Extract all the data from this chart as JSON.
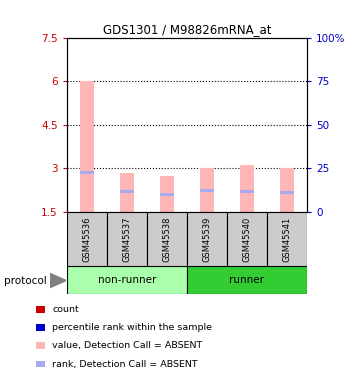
{
  "title": "GDS1301 / M98826mRNA_at",
  "samples": [
    "GSM45536",
    "GSM45537",
    "GSM45538",
    "GSM45539",
    "GSM45540",
    "GSM45541"
  ],
  "bar_values": [
    6.02,
    2.85,
    2.75,
    3.02,
    3.12,
    3.02
  ],
  "rank_values": [
    2.85,
    2.2,
    2.1,
    2.22,
    2.2,
    2.18
  ],
  "bar_bottom": 1.5,
  "ylim_left": [
    1.5,
    7.5
  ],
  "ylim_right": [
    0,
    100
  ],
  "yticks_left": [
    1.5,
    3.0,
    4.5,
    6.0,
    7.5
  ],
  "yticks_right": [
    0,
    25,
    50,
    75,
    100
  ],
  "ytick_labels_left": [
    "1.5",
    "3",
    "4.5",
    "6",
    "7.5"
  ],
  "ytick_labels_right": [
    "0",
    "25",
    "50",
    "75",
    "100%"
  ],
  "bar_color": "#FFB6B6",
  "rank_color": "#AAAAEE",
  "group_colors": {
    "non-runner": "#AAFFAA",
    "runner": "#33CC33"
  },
  "sample_box_color": "#CCCCCC",
  "legend_items": [
    {
      "color": "#CC0000",
      "label": "count"
    },
    {
      "color": "#0000CC",
      "label": "percentile rank within the sample"
    },
    {
      "color": "#FFB6B6",
      "label": "value, Detection Call = ABSENT"
    },
    {
      "color": "#AAAAEE",
      "label": "rank, Detection Call = ABSENT"
    }
  ],
  "protocol_label": "protocol",
  "left_tick_color": "#CC0000",
  "right_tick_color": "#0000CC"
}
